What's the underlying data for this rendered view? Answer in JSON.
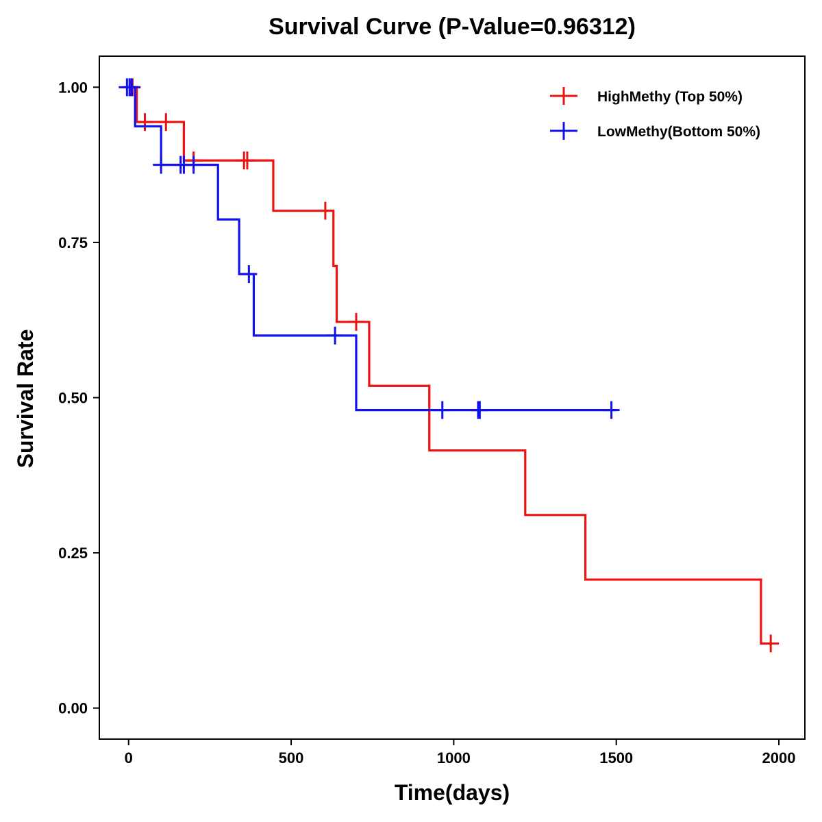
{
  "chart_data": {
    "type": "line",
    "subtype": "kaplan-meier-step",
    "title": "Survival Curve (P-Value=0.96312)",
    "xlabel": "Time(days)",
    "ylabel": "Survival Rate",
    "xlim": [
      -90,
      2080
    ],
    "ylim": [
      -0.05,
      1.05
    ],
    "xticks": [
      0,
      500,
      1000,
      1500,
      2000
    ],
    "xtick_labels": [
      "0",
      "500",
      "1000",
      "1500",
      "2000"
    ],
    "yticks": [
      0,
      0.25,
      0.5,
      0.75,
      1.0
    ],
    "ytick_labels": [
      "0.00",
      "0.25",
      "0.50",
      "0.75",
      "1.00"
    ],
    "grid": false,
    "legend_position": "top-right",
    "series": [
      {
        "name": "HighMethy (Top 50%)",
        "color": "#ee1111",
        "steps": [
          [
            0,
            1.0
          ],
          [
            25,
            0.944
          ],
          [
            170,
            0.882
          ],
          [
            445,
            0.801
          ],
          [
            630,
            0.712
          ],
          [
            640,
            0.622
          ],
          [
            740,
            0.519
          ],
          [
            925,
            0.415
          ],
          [
            1220,
            0.311
          ],
          [
            1405,
            0.207
          ],
          [
            1945,
            0.104
          ]
        ],
        "end_x": 1975,
        "censors": [
          [
            5,
            1.0
          ],
          [
            12,
            1.0
          ],
          [
            50,
            0.944
          ],
          [
            115,
            0.944
          ],
          [
            200,
            0.882
          ],
          [
            355,
            0.882
          ],
          [
            365,
            0.882
          ],
          [
            605,
            0.801
          ],
          [
            700,
            0.622
          ],
          [
            1975,
            0.104
          ]
        ]
      },
      {
        "name": "LowMethy(Bottom 50%)",
        "color": "#1111ee",
        "steps": [
          [
            0,
            1.0
          ],
          [
            20,
            0.937
          ],
          [
            100,
            0.875
          ],
          [
            275,
            0.787
          ],
          [
            340,
            0.699
          ],
          [
            385,
            0.6
          ],
          [
            700,
            0.48
          ]
        ],
        "end_x": 1500,
        "censors": [
          [
            -5,
            1.0
          ],
          [
            3,
            1.0
          ],
          [
            10,
            1.0
          ],
          [
            100,
            0.875
          ],
          [
            160,
            0.875
          ],
          [
            170,
            0.875
          ],
          [
            200,
            0.875
          ],
          [
            370,
            0.699
          ],
          [
            635,
            0.6
          ],
          [
            965,
            0.48
          ],
          [
            1075,
            0.48
          ],
          [
            1080,
            0.48
          ],
          [
            1485,
            0.48
          ]
        ]
      }
    ]
  }
}
